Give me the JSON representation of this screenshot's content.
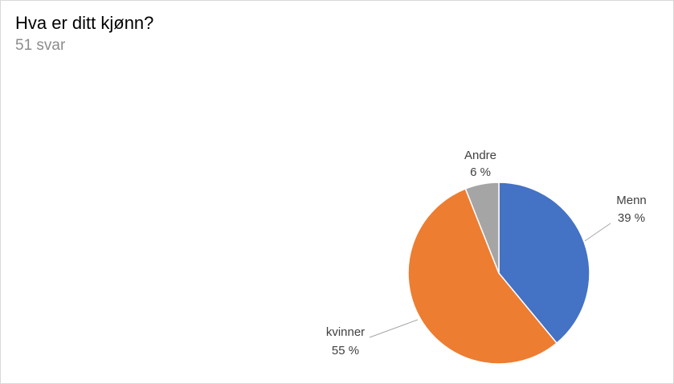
{
  "header": {
    "title": "Hva er ditt kjønn?",
    "subtitle": "51 svar"
  },
  "chart_data": {
    "type": "pie",
    "title": "Hva er ditt kjønn?",
    "subtitle": "51 svar",
    "slices": [
      {
        "label": "Menn",
        "value": 39,
        "value_label": "39 %",
        "color": "#4472C4"
      },
      {
        "label": "kvinner",
        "value": 55,
        "value_label": "55 %",
        "color": "#ED7D31"
      },
      {
        "label": "Andre",
        "value": 6,
        "value_label": "6 %",
        "color": "#A5A5A5"
      }
    ],
    "start_angle": "12 o'clock",
    "direction": "clockwise",
    "data_labels": "outside with leader lines",
    "legend": "none"
  }
}
